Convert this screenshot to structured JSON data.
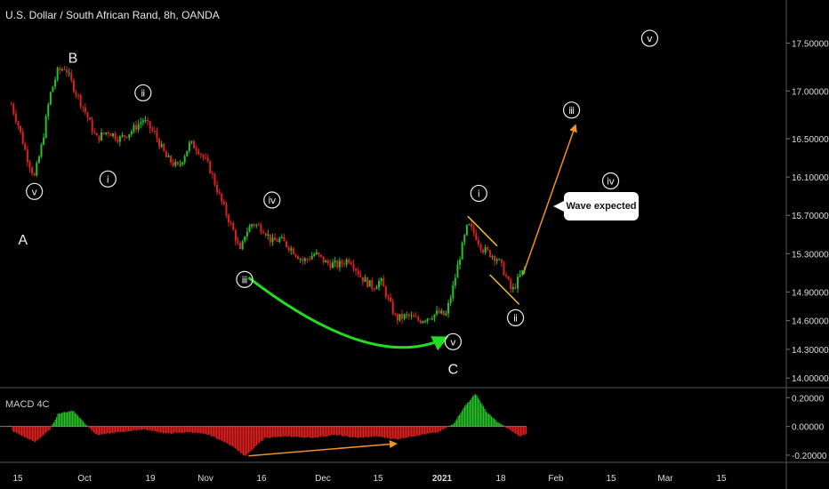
{
  "title": "U.S. Dollar / South African Rand, 8h, OANDA",
  "macd_label": "MACD 4C",
  "callout": "Wave expected",
  "colors": {
    "background": "#000000",
    "up": "#26c226",
    "down": "#e02020",
    "arrow_green": "#22dd22",
    "arrow_orange": "#f0902a",
    "channel": "#f0c020"
  },
  "chart_data": [
    {
      "type": "line",
      "series": [
        {
          "values": [
            [
              "Sep 12",
              16.86
            ],
            [
              "Sep 14",
              16.62
            ],
            [
              "Sep 16",
              16.32
            ],
            [
              "Sep 18",
              16.1
            ],
            [
              "Sep 20",
              16.45
            ],
            [
              "Sep 22",
              16.95
            ],
            [
              "Sep 24",
              17.2
            ],
            [
              "Sep 26",
              17.25
            ],
            [
              "Sep 28",
              17.05
            ],
            [
              "Oct 1",
              16.8
            ],
            [
              "Oct 4",
              16.5
            ],
            [
              "Oct 7",
              16.58
            ],
            [
              "Oct 10",
              16.5
            ],
            [
              "Oct 13",
              16.58
            ],
            [
              "Oct 16",
              16.7
            ],
            [
              "Oct 19",
              16.55
            ],
            [
              "Oct 22",
              16.3
            ],
            [
              "Oct 25",
              16.2
            ],
            [
              "Oct 28",
              16.45
            ],
            [
              "Oct 30",
              16.4
            ],
            [
              "Nov 2",
              16.2
            ],
            [
              "Nov 5",
              15.85
            ],
            [
              "Nov 8",
              15.55
            ],
            [
              "Nov 10",
              15.3
            ],
            [
              "Nov 11",
              15.5
            ],
            [
              "Nov 13",
              15.62
            ],
            [
              "Nov 16",
              15.55
            ],
            [
              "Nov 18",
              15.42
            ],
            [
              "Nov 20",
              15.45
            ],
            [
              "Nov 23",
              15.35
            ],
            [
              "Nov 26",
              15.22
            ],
            [
              "Nov 29",
              15.3
            ],
            [
              "Dec 2",
              15.2
            ],
            [
              "Dec 5",
              15.18
            ],
            [
              "Dec 8",
              15.25
            ],
            [
              "Dec 11",
              15.05
            ],
            [
              "Dec 14",
              14.95
            ],
            [
              "Dec 16",
              15.02
            ],
            [
              "Dec 18",
              14.82
            ],
            [
              "Dec 20",
              14.62
            ],
            [
              "Dec 23",
              14.65
            ],
            [
              "Dec 26",
              14.6
            ],
            [
              "Dec 29",
              14.65
            ],
            [
              "Dec 31",
              14.68
            ],
            [
              "Jan 2",
              14.65
            ],
            [
              "Jan 4",
              14.95
            ],
            [
              "Jan 6",
              15.3
            ],
            [
              "Jan 8",
              15.6
            ],
            [
              "Jan 10",
              15.5
            ],
            [
              "Jan 12",
              15.35
            ],
            [
              "Jan 14",
              15.3
            ],
            [
              "Jan 16",
              15.25
            ],
            [
              "Jan 18",
              15.1
            ],
            [
              "Jan 20",
              14.9
            ],
            [
              "Jan 22",
              15.05
            ],
            [
              "Jan 24",
              15.18
            ]
          ]
        }
      ],
      "ylim": [
        13.9,
        17.95
      ],
      "yticks": [
        "17.50000",
        "17.00000",
        "16.50000",
        "16.10000",
        "15.70000",
        "15.30000",
        "14.90000",
        "14.60000",
        "14.30000",
        "14.00000"
      ],
      "xticks": [
        "15",
        "Oct",
        "19",
        "Nov",
        "16",
        "Dec",
        "15",
        "2021",
        "18",
        "Feb",
        "15",
        "Mar",
        "15"
      ],
      "annotations": [
        {
          "text": "ⅴ",
          "encircled": true,
          "x": "Sep 18",
          "y": 15.95
        },
        {
          "text": "A",
          "x": "Sep 15",
          "y": 15.45
        },
        {
          "text": "B",
          "x": "Sep 28",
          "y": 17.35
        },
        {
          "text": "ⅱ",
          "encircled": true,
          "x": "Oct 16",
          "y": 16.98
        },
        {
          "text": "ⅰ",
          "encircled": true,
          "x": "Oct 7",
          "y": 16.08
        },
        {
          "text": "ⅳ",
          "encircled": true,
          "x": "Nov 18",
          "y": 15.86
        },
        {
          "text": "ⅲ",
          "encircled": true,
          "x": "Nov 11",
          "y": 15.03
        },
        {
          "text": "ⅴ",
          "encircled": true,
          "x": "Jan 4",
          "y": 14.38
        },
        {
          "text": "C",
          "x": "Jan 4",
          "y": 14.1
        },
        {
          "text": "ⅰ",
          "encircled": true,
          "x": "Jan 11",
          "y": 15.93
        },
        {
          "text": "ⅱ",
          "encircled": true,
          "x": "Jan 21",
          "y": 14.63
        },
        {
          "text": "ⅲ",
          "encircled": true,
          "x": "Feb 5",
          "y": 16.8
        },
        {
          "text": "ⅳ",
          "encircled": true,
          "x": "Feb 15",
          "y": 16.06
        },
        {
          "text": "ⅴ",
          "encircled": true,
          "x": "Feb 25",
          "y": 17.55
        }
      ]
    },
    {
      "type": "bar",
      "title": "MACD 4C",
      "ylim": [
        -0.25,
        0.27
      ],
      "yticks": [
        "0.20000",
        "0.00000",
        "-0.20000"
      ]
    }
  ]
}
